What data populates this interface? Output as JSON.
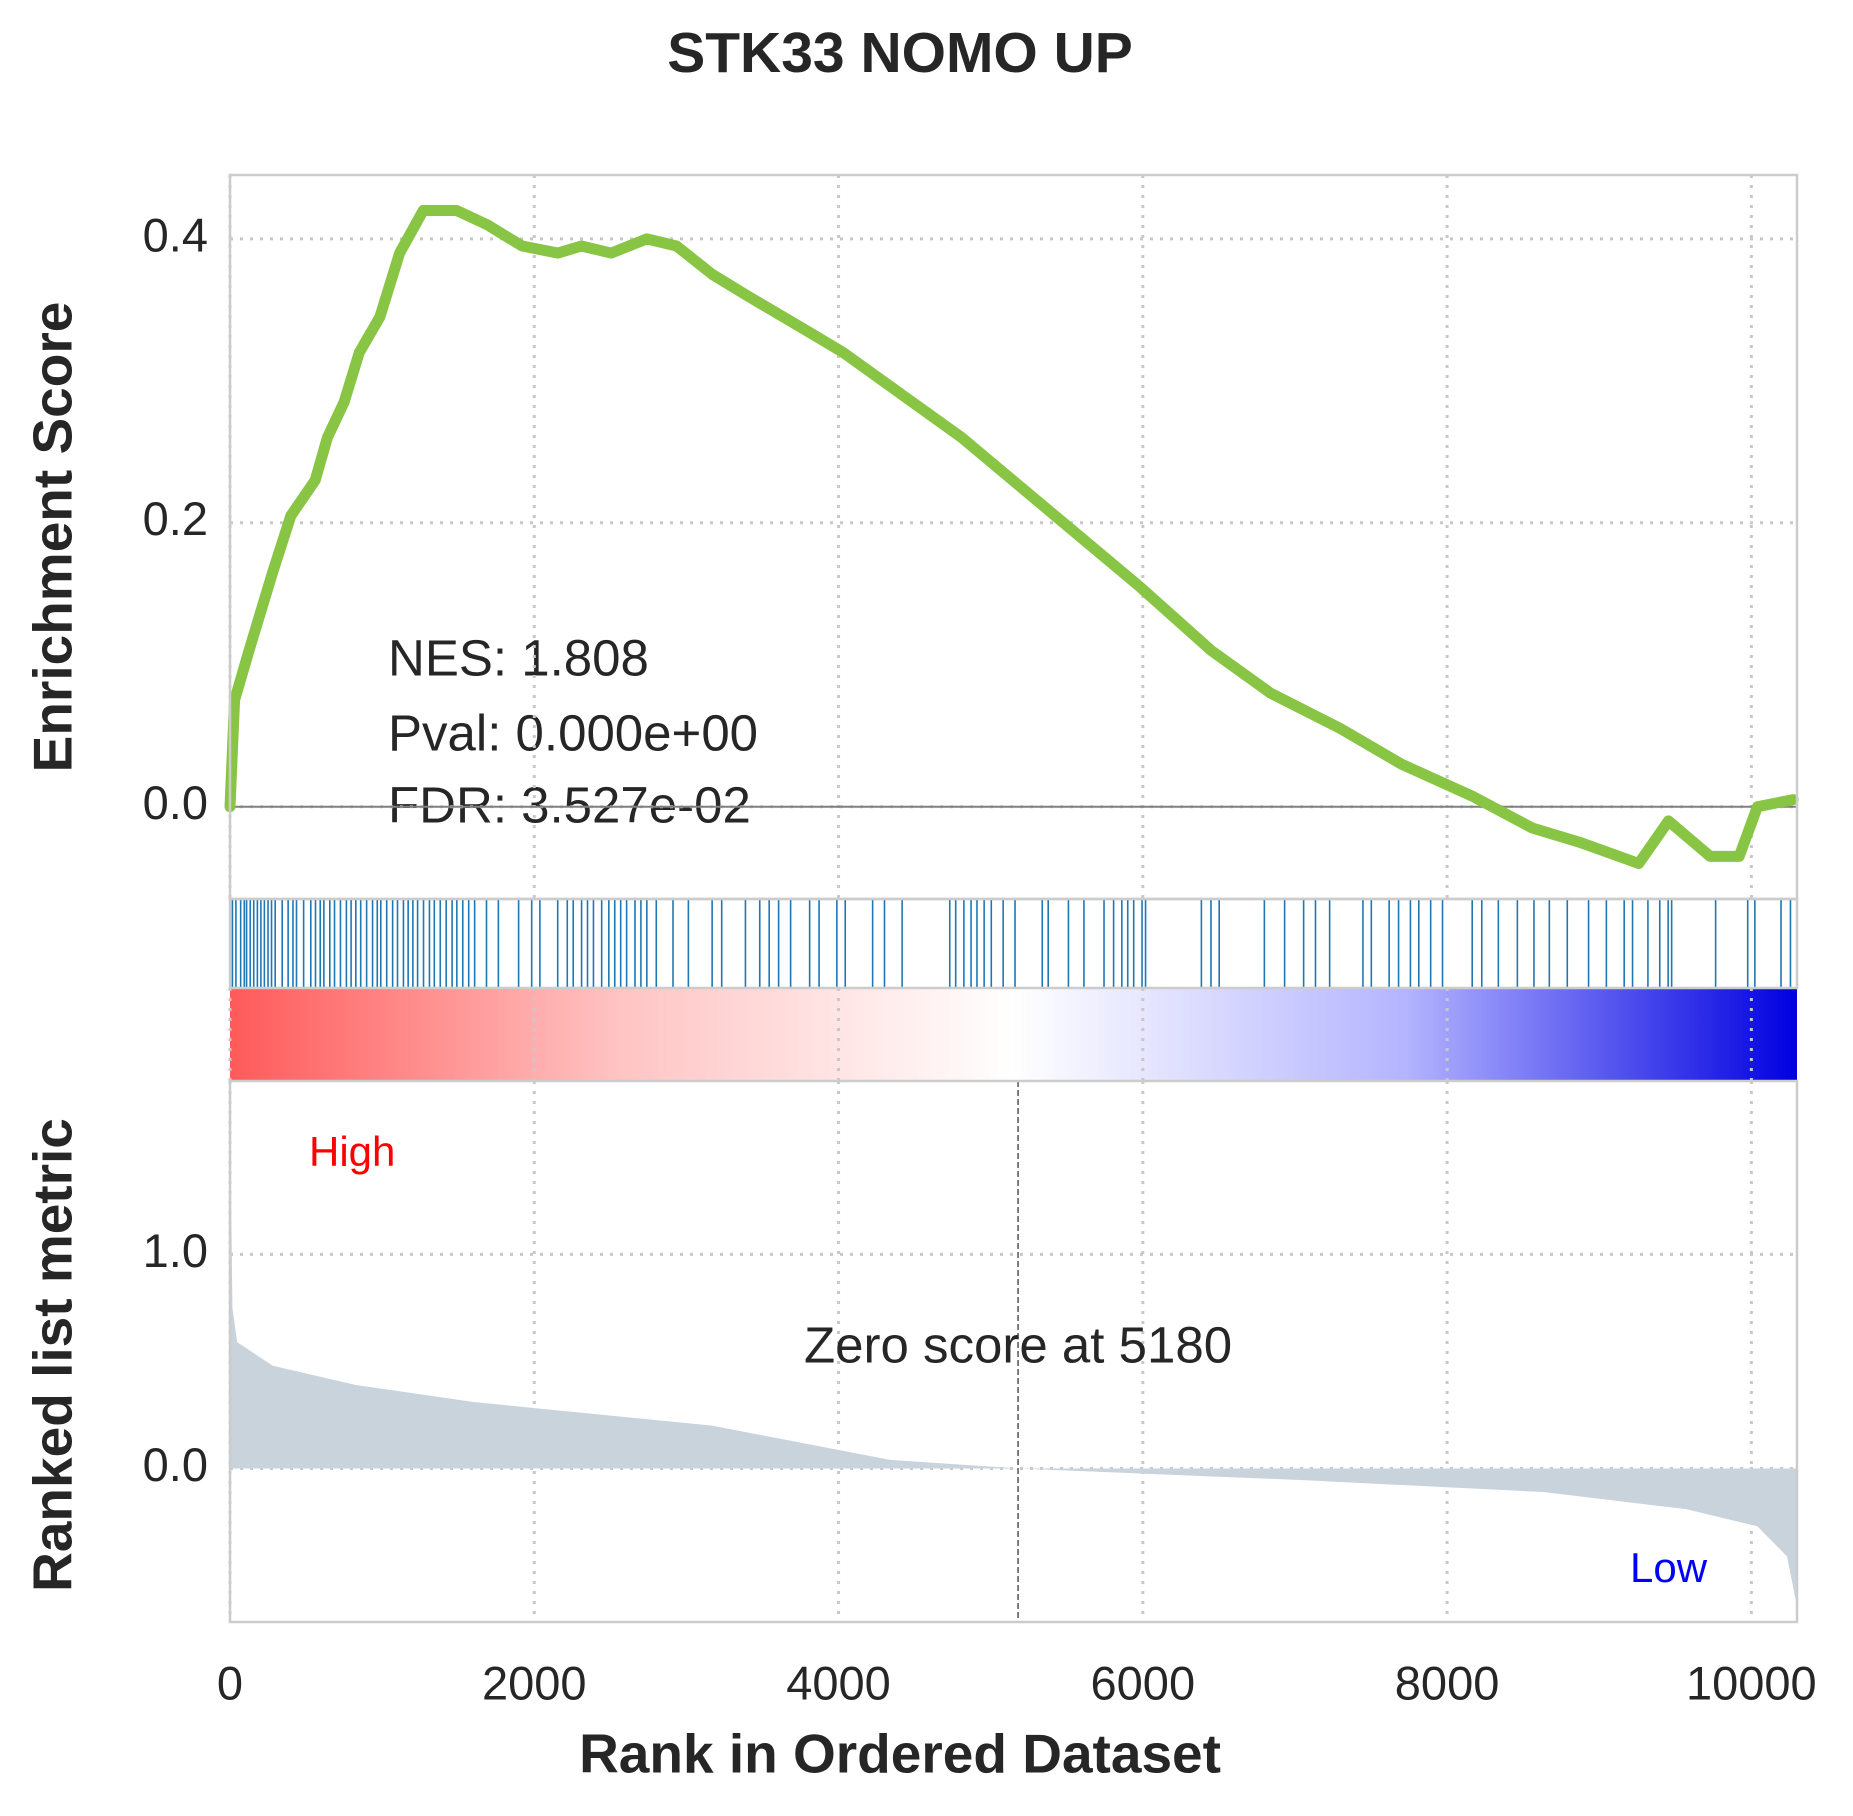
{
  "chart_data": {
    "type": "gsea",
    "title": "STK33 NOMO UP",
    "x_label": "Rank in Ordered Dataset",
    "xlim": [
      0,
      10300
    ],
    "xticks": [
      0,
      2000,
      4000,
      6000,
      8000,
      10000
    ],
    "grid": true,
    "es": {
      "y_label": "Enrichment Score",
      "color": "#88c544",
      "ylim": [
        -0.065,
        0.445
      ],
      "yticks": [
        {
          "value": 0,
          "label": "0.0"
        },
        {
          "value": 0.2,
          "label": "0.2"
        },
        {
          "value": 0.4,
          "label": "0.4"
        }
      ],
      "x": [
        0,
        30,
        125,
        280,
        400,
        560,
        640,
        750,
        850,
        985,
        1115,
        1270,
        1490,
        1690,
        1920,
        2155,
        2310,
        2505,
        2740,
        2935,
        3170,
        3400,
        3795,
        4030,
        4420,
        4810,
        5200,
        5590,
        5980,
        6450,
        6840,
        7300,
        7700,
        8165,
        8560,
        8870,
        9260,
        9455,
        9730,
        9920,
        10040,
        10275
      ],
      "values": [
        0,
        0.075,
        0.11,
        0.165,
        0.205,
        0.23,
        0.26,
        0.285,
        0.32,
        0.345,
        0.39,
        0.42,
        0.42,
        0.41,
        0.395,
        0.39,
        0.395,
        0.39,
        0.4,
        0.395,
        0.375,
        0.36,
        0.335,
        0.32,
        0.29,
        0.26,
        0.225,
        0.19,
        0.155,
        0.11,
        0.08,
        0.055,
        0.03,
        0.0075,
        -0.015,
        -0.025,
        -0.04,
        -0.01,
        -0.035,
        -0.035,
        0,
        0.005
      ]
    },
    "stats": [
      "NES: 1.808",
      "Pval: 0.000e+00",
      "FDR: 3.527e-02"
    ],
    "hits": {
      "color": "#1f77b4",
      "x": [
        16,
        39,
        70,
        94,
        109,
        133,
        156,
        180,
        203,
        226,
        250,
        273,
        297,
        343,
        382,
        414,
        437,
        484,
        531,
        562,
        593,
        617,
        656,
        687,
        726,
        765,
        796,
        827,
        859,
        898,
        937,
        968,
        991,
        1030,
        1069,
        1101,
        1140,
        1171,
        1202,
        1233,
        1272,
        1311,
        1343,
        1382,
        1421,
        1460,
        1491,
        1530,
        1569,
        1608,
        1686,
        1764,
        1897,
        1983,
        2037,
        2154,
        2217,
        2256,
        2311,
        2350,
        2389,
        2443,
        2490,
        2529,
        2568,
        2607,
        2662,
        2701,
        2740,
        2802,
        2912,
        3013,
        3169,
        3232,
        3388,
        3482,
        3544,
        3606,
        3685,
        3810,
        3872,
        3989,
        4044,
        4224,
        4302,
        4418,
        4731,
        4770,
        4824,
        4871,
        4910,
        4957,
        5004,
        5082,
        5160,
        5339,
        5378,
        5511,
        5613,
        5745,
        5808,
        5862,
        5901,
        5940,
        5995,
        6018,
        6385,
        6448,
        6502,
        6799,
        6932,
        7057,
        7135,
        7228,
        7447,
        7502,
        7619,
        7681,
        7759,
        7814,
        7892,
        7970,
        8165,
        8228,
        8337,
        8462,
        8571,
        8672,
        8790,
        8930,
        9047,
        9164,
        9219,
        9320,
        9398,
        9453,
        9476,
        9765,
        9976,
        10023,
        10195,
        10257
      ]
    },
    "metric": {
      "y_label": "Ranked list metric",
      "color": "#c8d3dc",
      "ylim": [
        -0.717,
        1.81
      ],
      "yticks": [
        {
          "value": 0,
          "label": "0.0"
        },
        {
          "value": 1,
          "label": "1.0"
        }
      ],
      "x": [
        0,
        16,
        47,
        281,
        827,
        1608,
        3169,
        4340,
        5180,
        7073,
        8634,
        9571,
        10039,
        10234,
        10296
      ],
      "values": [
        1.7,
        0.75,
        0.59,
        0.48,
        0.39,
        0.31,
        0.2,
        0.04,
        0,
        -0.055,
        -0.11,
        -0.19,
        -0.27,
        -0.41,
        -0.63
      ],
      "zero_rank": 5180,
      "zero_label": "Zero score at 5180",
      "high_label": "High",
      "low_label": "Low"
    }
  }
}
